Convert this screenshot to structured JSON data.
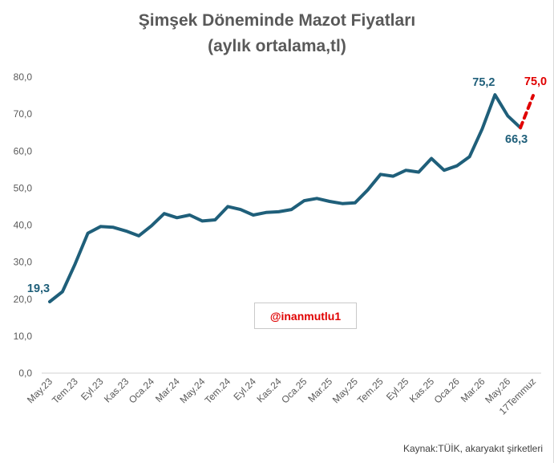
{
  "chart_data": {
    "type": "line",
    "title": "Şimşek Döneminde Mazot Fiyatları",
    "subtitle": "(aylık ortalama,tl)",
    "ylim": [
      0,
      80
    ],
    "yticks": [
      "0,0",
      "10,0",
      "20,0",
      "30,0",
      "40,0",
      "50,0",
      "60,0",
      "70,0",
      "80,0"
    ],
    "grid": false,
    "x": [
      "May.23",
      "Haz.23",
      "Tem.23",
      "Ağu.23",
      "Eyl.23",
      "Eki.23",
      "Kas.23",
      "Ara.23",
      "Oca.24",
      "Şub.24",
      "Mar.24",
      "Nis.24",
      "May.24",
      "Haz.24",
      "Tem.24",
      "Ağu.24",
      "Eyl.24",
      "Eki.24",
      "Kas.24",
      "Ara.24",
      "Oca.25",
      "Şub.25",
      "Mar.25",
      "Nis.25",
      "May.25",
      "Haz.25",
      "Tem.25",
      "Ağu.25",
      "Eyl.25",
      "Eki.25",
      "Kas.25",
      "Ara.25",
      "Oca.26",
      "Şub.26",
      "Mar.26",
      "Nis.26",
      "May.26",
      "Haz.26",
      "17Temmuz"
    ],
    "x_tick_labels_shown": [
      "May.23",
      "Tem.23",
      "Eyl.23",
      "Kas.23",
      "Oca.24",
      "Mar.24",
      "May.24",
      "Tem.24",
      "Eyl.24",
      "Kas.24",
      "Oca.25",
      "Mar.25",
      "May.25",
      "Tem.25",
      "Eyl.25",
      "Kas.25",
      "Oca.26",
      "Mar.26",
      "May.26",
      "17Temmuz"
    ],
    "series": [
      {
        "color": "#1f5f7a",
        "style": "solid",
        "values": [
          19.3,
          22.0,
          29.5,
          37.8,
          39.6,
          39.4,
          38.4,
          37.1,
          39.8,
          43.1,
          42.0,
          42.7,
          41.1,
          41.4,
          45.0,
          44.2,
          42.7,
          43.4,
          43.6,
          44.2,
          46.6,
          47.2,
          46.4,
          45.8,
          46.0,
          49.5,
          53.7,
          53.2,
          54.8,
          54.3,
          58.0,
          54.8,
          56.0,
          58.5,
          66.0,
          75.2,
          69.5,
          66.3,
          null
        ]
      },
      {
        "color": "#e00000",
        "style": "dashed",
        "values": [
          null,
          null,
          null,
          null,
          null,
          null,
          null,
          null,
          null,
          null,
          null,
          null,
          null,
          null,
          null,
          null,
          null,
          null,
          null,
          null,
          null,
          null,
          null,
          null,
          null,
          null,
          null,
          null,
          null,
          null,
          null,
          null,
          null,
          null,
          null,
          null,
          null,
          66.3,
          75.0
        ]
      }
    ],
    "data_labels": [
      {
        "index": 0,
        "text": "19,3",
        "color": "#1f5f7a"
      },
      {
        "index": 35,
        "text": "75,2",
        "color": "#1f5f7a"
      },
      {
        "index": 37,
        "text": "66,3",
        "color": "#1f5f7a"
      },
      {
        "index": 38,
        "text": "75,0",
        "color": "#e00000"
      }
    ]
  },
  "annotation": "@inanmutlu1",
  "source": "Kaynak:TÜİK, akaryakıt şirketleri"
}
